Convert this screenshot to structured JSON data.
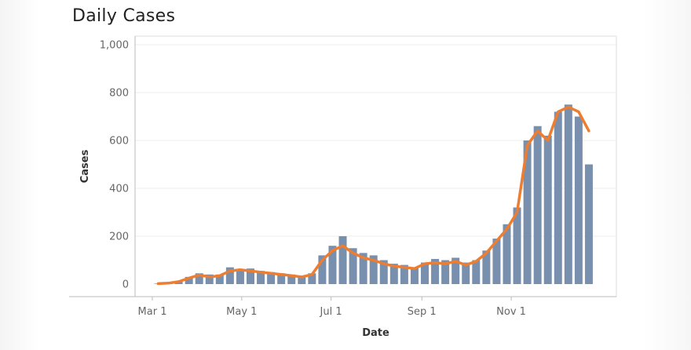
{
  "title": "Daily Cases",
  "chart_data": {
    "type": "bar",
    "title": "Daily Cases",
    "xlabel": "Date",
    "ylabel": "Cases",
    "ylim": [
      0,
      1000
    ],
    "xlim": [
      "2020-03-01",
      "2020-12-31"
    ],
    "y_ticks": [
      0,
      200,
      400,
      600,
      800,
      1000
    ],
    "y_tick_labels": [
      "0",
      "200",
      "400",
      "600",
      "800",
      "1,000"
    ],
    "x_ticks": [
      "2020-03-01",
      "2020-05-01",
      "2020-07-01",
      "2020-09-01",
      "2020-11-01"
    ],
    "x_tick_labels": [
      "Mar 1",
      "May 1",
      "Jul 1",
      "Sep 1",
      "Nov 1"
    ],
    "grid": true,
    "bar_color": "#7890ad",
    "line_color": "#ed7d31",
    "series": [
      {
        "type": "bar",
        "x": [
          "2020-03-05",
          "2020-03-12",
          "2020-03-19",
          "2020-03-26",
          "2020-04-02",
          "2020-04-09",
          "2020-04-16",
          "2020-04-23",
          "2020-04-30",
          "2020-05-07",
          "2020-05-14",
          "2020-05-21",
          "2020-05-28",
          "2020-06-04",
          "2020-06-11",
          "2020-06-18",
          "2020-06-25",
          "2020-07-02",
          "2020-07-09",
          "2020-07-16",
          "2020-07-23",
          "2020-07-30",
          "2020-08-06",
          "2020-08-13",
          "2020-08-20",
          "2020-08-27",
          "2020-09-03",
          "2020-09-10",
          "2020-09-17",
          "2020-09-24",
          "2020-10-01",
          "2020-10-08",
          "2020-10-15",
          "2020-10-22",
          "2020-10-29",
          "2020-11-05",
          "2020-11-12",
          "2020-11-19",
          "2020-11-26",
          "2020-12-03",
          "2020-12-10",
          "2020-12-17",
          "2020-12-24"
        ],
        "values": [
          2,
          5,
          10,
          30,
          45,
          40,
          40,
          70,
          60,
          65,
          55,
          50,
          45,
          40,
          30,
          45,
          120,
          160,
          200,
          150,
          130,
          120,
          100,
          85,
          80,
          70,
          90,
          105,
          100,
          110,
          90,
          100,
          140,
          190,
          250,
          320,
          600,
          660,
          620,
          720,
          750,
          700,
          500
        ]
      },
      {
        "type": "line",
        "x": [
          "2020-03-05",
          "2020-03-12",
          "2020-03-19",
          "2020-03-26",
          "2020-04-02",
          "2020-04-09",
          "2020-04-16",
          "2020-04-23",
          "2020-04-30",
          "2020-05-07",
          "2020-05-14",
          "2020-05-21",
          "2020-05-28",
          "2020-06-04",
          "2020-06-11",
          "2020-06-18",
          "2020-06-25",
          "2020-07-02",
          "2020-07-09",
          "2020-07-16",
          "2020-07-23",
          "2020-07-30",
          "2020-08-06",
          "2020-08-13",
          "2020-08-20",
          "2020-08-27",
          "2020-09-03",
          "2020-09-10",
          "2020-09-17",
          "2020-09-24",
          "2020-10-01",
          "2020-10-08",
          "2020-10-15",
          "2020-10-22",
          "2020-10-29",
          "2020-11-05",
          "2020-11-12",
          "2020-11-19",
          "2020-11-26",
          "2020-12-03",
          "2020-12-10",
          "2020-12-17",
          "2020-12-24"
        ],
        "values": [
          2,
          4,
          10,
          25,
          38,
          30,
          35,
          55,
          60,
          55,
          50,
          45,
          40,
          35,
          30,
          40,
          100,
          140,
          160,
          130,
          110,
          100,
          85,
          75,
          70,
          65,
          85,
          90,
          85,
          95,
          80,
          95,
          130,
          180,
          230,
          300,
          580,
          640,
          600,
          720,
          740,
          720,
          640
        ]
      }
    ]
  }
}
